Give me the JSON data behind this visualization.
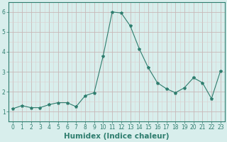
{
  "x": [
    0,
    1,
    2,
    3,
    4,
    5,
    6,
    7,
    8,
    9,
    10,
    11,
    12,
    13,
    14,
    15,
    16,
    17,
    18,
    19,
    20,
    21,
    22,
    23
  ],
  "y": [
    1.15,
    1.3,
    1.2,
    1.2,
    1.35,
    1.45,
    1.45,
    1.25,
    1.8,
    1.95,
    3.8,
    6.0,
    5.95,
    5.3,
    4.15,
    3.2,
    2.45,
    2.15,
    1.95,
    2.2,
    2.7,
    2.45,
    1.65,
    3.05
  ],
  "line_color": "#2e7d6e",
  "marker": "*",
  "marker_size": 3,
  "xlabel": "Humidex (Indice chaleur)",
  "xlim": [
    -0.5,
    23.5
  ],
  "ylim": [
    0.5,
    6.5
  ],
  "yticks": [
    1,
    2,
    3,
    4,
    5,
    6
  ],
  "xticks": [
    0,
    1,
    2,
    3,
    4,
    5,
    6,
    7,
    8,
    9,
    10,
    11,
    12,
    13,
    14,
    15,
    16,
    17,
    18,
    19,
    20,
    21,
    22,
    23
  ],
  "bg_color": "#d8eeec",
  "grid_major_color": "#c8b8b8",
  "grid_minor_color": "#ddd0d0",
  "line_width": 0.8,
  "border_color": "#2e7d6e",
  "tick_fontsize": 5.5,
  "xlabel_fontsize": 7.5
}
